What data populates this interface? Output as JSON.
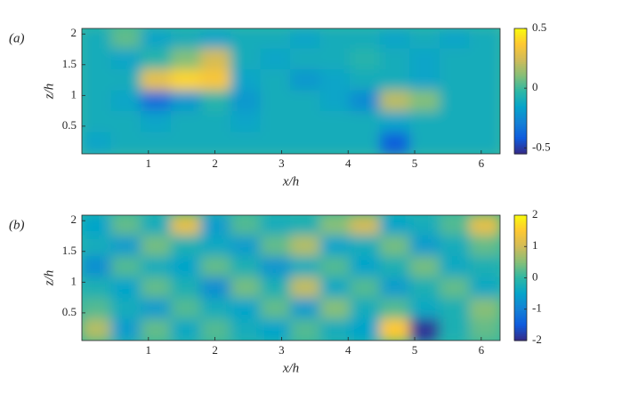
{
  "chart_data": [
    {
      "type": "heatmap",
      "panel_label": "(a)",
      "x_label": "x/h",
      "y_label": "z/h",
      "xlim": [
        0,
        6.283
      ],
      "ylim": [
        0.05,
        2.09
      ],
      "xticks": [
        1,
        2,
        3,
        4,
        5,
        6
      ],
      "yticks": [
        0.5,
        1,
        1.5,
        2
      ],
      "clim": [
        -0.55,
        0.5
      ],
      "cticks": [
        0.5,
        0,
        -0.5
      ],
      "colormap": [
        "#352a87",
        "#0f5cdd",
        "#1481d6",
        "#06a4ca",
        "#2eb7a4",
        "#87bf77",
        "#d1bb59",
        "#fec832",
        "#f9fb0e"
      ],
      "values": [
        [
          -0.1,
          0.05,
          -0.15,
          -0.1,
          -0.15,
          -0.1,
          -0.1,
          -0.15,
          -0.1,
          -0.1,
          -0.15,
          -0.1,
          -0.15,
          -0.1
        ],
        [
          -0.1,
          -0.15,
          -0.05,
          0.1,
          0.25,
          -0.1,
          -0.15,
          -0.1,
          -0.1,
          -0.05,
          -0.1,
          -0.15,
          -0.1,
          -0.1
        ],
        [
          -0.1,
          -0.1,
          0.3,
          0.4,
          0.35,
          -0.15,
          -0.1,
          -0.2,
          -0.15,
          -0.1,
          -0.1,
          -0.15,
          -0.1,
          -0.1
        ],
        [
          -0.1,
          -0.15,
          -0.35,
          -0.2,
          -0.05,
          -0.2,
          -0.1,
          -0.1,
          -0.15,
          -0.25,
          0.2,
          0.1,
          -0.1,
          -0.1
        ],
        [
          -0.1,
          -0.1,
          -0.15,
          -0.1,
          -0.1,
          -0.15,
          -0.1,
          -0.1,
          -0.1,
          -0.1,
          -0.15,
          -0.1,
          -0.1,
          -0.1
        ],
        [
          -0.15,
          -0.1,
          -0.1,
          -0.1,
          -0.1,
          -0.1,
          -0.1,
          -0.1,
          -0.1,
          -0.1,
          -0.4,
          -0.1,
          -0.1,
          -0.1
        ]
      ]
    },
    {
      "type": "heatmap",
      "panel_label": "(b)",
      "x_label": "x/h",
      "y_label": "z/h",
      "xlim": [
        0,
        6.283
      ],
      "ylim": [
        0.05,
        2.09
      ],
      "xticks": [
        1,
        2,
        3,
        4,
        5,
        6
      ],
      "yticks": [
        0.5,
        1,
        1.5,
        2
      ],
      "clim": [
        -2,
        2
      ],
      "cticks": [
        2,
        1,
        0,
        -1,
        -2
      ],
      "colormap": [
        "#352a87",
        "#0f5cdd",
        "#1481d6",
        "#06a4ca",
        "#2eb7a4",
        "#87bf77",
        "#d1bb59",
        "#fec832",
        "#f9fb0e"
      ],
      "values": [
        [
          -0.5,
          0.3,
          -0.3,
          1.2,
          -0.6,
          0.2,
          -0.3,
          -0.2,
          0.5,
          1.0,
          -0.5,
          -0.3,
          0.2,
          1.2
        ],
        [
          -0.3,
          -0.6,
          0.4,
          -0.2,
          -0.4,
          -0.6,
          0.3,
          0.8,
          -0.5,
          -0.3,
          0.4,
          -0.6,
          -0.3,
          0.3
        ],
        [
          -0.8,
          0.2,
          -0.3,
          -0.5,
          0.3,
          -0.2,
          -0.7,
          -0.3,
          0.2,
          -0.5,
          -0.2,
          0.4,
          -0.4,
          -0.2
        ],
        [
          -0.2,
          -0.5,
          0.3,
          -0.2,
          -0.8,
          0.4,
          -0.2,
          0.9,
          -0.4,
          0.2,
          -0.6,
          -0.2,
          0.3,
          -0.4
        ],
        [
          0.2,
          -0.3,
          -0.6,
          0.2,
          -0.3,
          -0.5,
          0.3,
          -0.6,
          0.5,
          -0.3,
          0.2,
          -0.4,
          -0.2,
          0.5
        ],
        [
          0.8,
          -0.6,
          0.3,
          -0.4,
          0.2,
          -0.3,
          -0.5,
          0.2,
          -0.3,
          -0.5,
          1.5,
          -1.9,
          -0.2,
          0.3
        ]
      ]
    }
  ]
}
